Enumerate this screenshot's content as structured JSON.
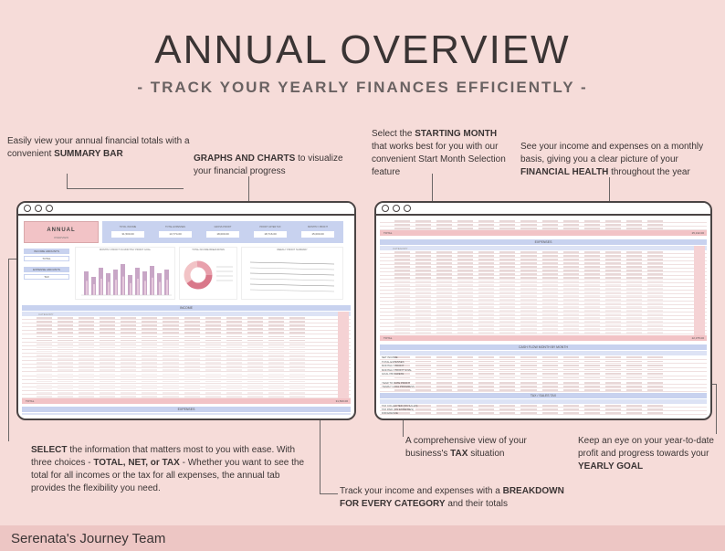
{
  "header": {
    "title": "ANNUAL OVERVIEW",
    "subtitle": "- TRACK YOUR YEARLY FINANCES EFFICIENTLY -"
  },
  "notes": {
    "summary_bar": {
      "pre": "Easily view your annual financial totals with a convenient ",
      "bold": "SUMMARY BAR"
    },
    "graphs": {
      "bold": "GRAPHS AND CHARTS",
      "post": " to visualize your financial progress"
    },
    "starting_month": {
      "pre": "Select the ",
      "bold": "STARTING MONTH",
      "post": " that works best for you with our convenient Start Month Selection feature"
    },
    "financial_health": {
      "pre": "See your income and expenses on a monthly basis, giving you a clear picture of your ",
      "bold": "FINANCIAL HEALTH",
      "post": " throughout the year"
    },
    "select": {
      "bold1": "SELECT",
      "mid1": " the information that matters most to you with ease. With three choices - ",
      "bold2": "TOTAL, NET, or TAX",
      "post": " - Whether you want to see the total for all incomes or the tax for all expenses, the annual tab provides the flexibility you need."
    },
    "breakdown": {
      "pre": "Track your income and expenses with a ",
      "bold": "BREAKDOWN FOR EVERY CATEGORY",
      "post": " and their totals"
    },
    "tax": {
      "pre": "A comprehensive view of your business's ",
      "bold": "TAX",
      "post": " situation"
    },
    "yearly_goal": {
      "pre": "Keep an eye on your year-to-date profit and progress towards your ",
      "bold": "YEARLY GOAL"
    }
  },
  "left_sheet": {
    "title": "ANNUAL",
    "subtitle": "OVERVIEW",
    "summary_labels": [
      "TOTAL INCOME",
      "TOTAL EXPENSES",
      "GROSS PROFIT",
      "PROFIT AFTER TAX",
      "MONTHLY PROFIT"
    ],
    "summary_values": [
      "31,500.00",
      "13,774.00",
      "18,000.00",
      "18,716.00",
      "15,000.00"
    ],
    "selector_labels": [
      "INCOME AMOUNTS",
      "TOTAL",
      "EXPENSE AMOUNTS",
      "TAX"
    ],
    "chart_titles": [
      "MONTHLY PROFIT VS MONTHLY PROFIT GOAL",
      "TOTAL INCOME BREAKDOWN",
      "WEEKLY PROFIT SUMMARY"
    ],
    "income_band": "INCOME",
    "expenses_band": "EXPENSES",
    "category_label": "CATEGORY",
    "total_label": "TOTAL",
    "grand_total": "31,500.00"
  },
  "right_sheet": {
    "expenses_band": "EXPENSES",
    "category_label": "CATEGORY",
    "total_label": "TOTAL",
    "expense_total": "22,375.00",
    "top_total": "25,132.00",
    "cashflow_band": "CASH FLOW MONTH BY MONTH",
    "cashflow_rows": [
      "NET INCOME",
      "TOTAL EXPENSES",
      "MONTHLY PROFIT",
      "MONTHLY PROFIT GOAL",
      "GOAL PROGRESS"
    ],
    "ytd_rows": [
      "YEAR TO DATE PROFIT",
      "YEARLY GOAL PROGRESS"
    ],
    "tax_band": "TAX / SALES TAX",
    "tax_rows": [
      "TAX COLLECTED (ON SALES)",
      "TAX PAID (ON EXPENSES)",
      "DIFFERENCE"
    ]
  },
  "footer": {
    "brand": "Serenata's Journey Team"
  },
  "colors": {
    "background": "#f6dcd9",
    "accent_blue": "#c8d2ef",
    "accent_pink": "#f2c3c6",
    "footer": "#edc6c4"
  }
}
